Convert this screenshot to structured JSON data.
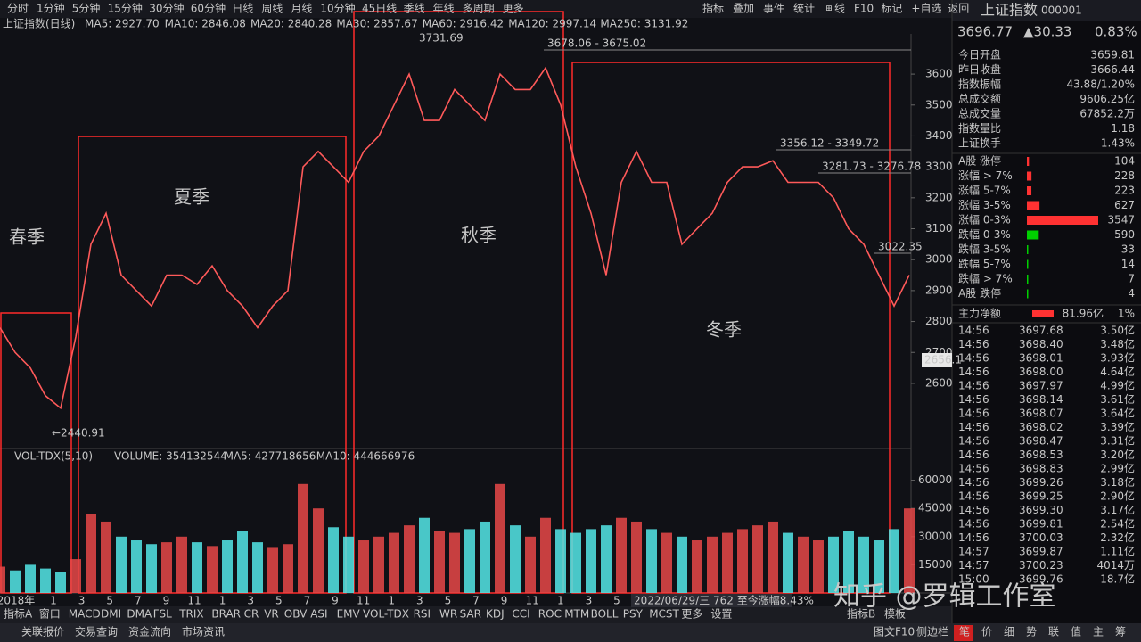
{
  "toolbar": {
    "periods": [
      "分时",
      "1分钟",
      "5分钟",
      "15分钟",
      "30分钟",
      "60分钟",
      "日线",
      "周线",
      "月线",
      "10分钟",
      "45日线",
      "季线",
      "年线",
      "多周期",
      "更多"
    ],
    "tools": [
      "指标",
      "叠加",
      "事件",
      "统计",
      "画线",
      "F10",
      "标记",
      "+自选",
      "返回"
    ]
  },
  "legend": {
    "title": "上证指数(日线)",
    "ma": [
      {
        "label": "MA5: 2927.70",
        "color": "#e8e8e8"
      },
      {
        "label": "MA10: 2846.08",
        "color": "#ffd700"
      },
      {
        "label": "MA20: 2840.28",
        "color": "#ff44ff"
      },
      {
        "label": "MA30: 2857.67",
        "color": "#33ee33"
      },
      {
        "label": "MA60: 2916.42",
        "color": "#e8e8e8"
      },
      {
        "label": "MA120: 2997.14",
        "color": "#3aa0e0"
      },
      {
        "label": "MA250: 3131.92",
        "color": "#e8e8e8"
      }
    ]
  },
  "chart_data": [
    {
      "type": "line",
      "color": "#ff5a5a",
      "values": [
        2780,
        2700,
        2650,
        2560,
        2520,
        2750,
        3050,
        3150,
        2950,
        2900,
        2850,
        2950,
        2950,
        2920,
        2980,
        2900,
        2850,
        2780,
        2850,
        2900,
        3300,
        3350,
        3300,
        3250,
        3350,
        3400,
        3500,
        3600,
        3450,
        3450,
        3550,
        3500,
        3450,
        3600,
        3550,
        3550,
        3620,
        3500,
        3300,
        3150,
        2950,
        3250,
        3350,
        3250,
        3250,
        3050,
        3100,
        3150,
        3250,
        3300,
        3300,
        3320,
        3250,
        3250,
        3250,
        3200,
        3100,
        3050,
        2950,
        2850,
        2950
      ],
      "ylim": [
        2398,
        3730
      ],
      "yticks": [
        2600,
        2700,
        2800,
        2900,
        3000,
        3100,
        3200,
        3300,
        3400,
        3500,
        3600
      ],
      "x_axis_labels": [
        "2018年",
        "1",
        "3",
        "5",
        "7",
        "9",
        "11",
        "1",
        "3",
        "5",
        "7",
        "9",
        "11",
        "1",
        "3",
        "5",
        "7",
        "9",
        "11",
        "1",
        "3",
        "5",
        "7"
      ],
      "annotations": [
        "3731.69",
        "3678.06 - 3675.02",
        "3356.12 - 3349.72",
        "3281.73 - 3276.78",
        "3022.35",
        "←2440.91"
      ],
      "crosshair_label": "2656.1",
      "seasons": [
        "春季",
        "夏季",
        "秋季",
        "冬季"
      ],
      "date_info": "2022/06/29/三 762 至今涨幅8.43%"
    },
    {
      "type": "bar",
      "title": "VOL-TDX(5,10)",
      "indicators": [
        {
          "label": "VOLUME: 354132544",
          "color": "#e8e8e8"
        },
        {
          "label": "MA5: 427718656",
          "color": "#e8e8e8"
        },
        {
          "label": "MA10: 444666976",
          "color": "#ffd700"
        }
      ],
      "values": [
        14000,
        12000,
        15000,
        13000,
        11000,
        18000,
        42000,
        38000,
        30000,
        28000,
        26000,
        27000,
        30000,
        27000,
        25000,
        28000,
        33000,
        27000,
        24000,
        26000,
        58000,
        45000,
        35000,
        30000,
        28000,
        30000,
        32000,
        36000,
        40000,
        33000,
        32000,
        34000,
        38000,
        58000,
        36000,
        30000,
        40000,
        34000,
        32000,
        34000,
        36000,
        40000,
        38000,
        34000,
        32000,
        30000,
        28000,
        30000,
        32000,
        34000,
        36000,
        38000,
        32000,
        30000,
        28000,
        30000,
        33000,
        30000,
        28000,
        34000,
        45000
      ],
      "ylim": [
        0,
        75000
      ],
      "yticks": [
        15000,
        30000,
        45000,
        60000
      ]
    }
  ],
  "tabs": [
    "指标A",
    "窗口",
    "MACD",
    "DMI",
    "DMA",
    "FSL",
    "TRIX",
    "BRAR",
    "CR",
    "VR",
    "OBV",
    "ASI",
    "EMV",
    "VOL-TDX",
    "RSI",
    "WR",
    "SAR",
    "KDJ",
    "CCI",
    "ROC",
    "MTM",
    "BOLL",
    "PSY",
    "MCST",
    "更多",
    "设置"
  ],
  "tabs_right": [
    "指标B",
    "模板"
  ],
  "status_bar": [
    "关联报价",
    "交易查询",
    "资金流向",
    "市场资讯"
  ],
  "status_right": [
    "图文F10",
    "侧边栏"
  ],
  "watermark": "知乎 @罗辑工作室",
  "quote": {
    "name": "上证指数",
    "code": "000001",
    "price": "3696.77",
    "change": "▲30.33",
    "pct": "0.83%"
  },
  "stats": [
    [
      "今日开盘",
      "3659.81"
    ],
    [
      "昨日收盘",
      "3666.44"
    ],
    [
      "指数振幅",
      "43.88/1.20%"
    ],
    [
      "总成交额",
      "9606.25亿"
    ],
    [
      "总成交量",
      "67852.2万"
    ],
    [
      "指数量比",
      "1.18"
    ],
    [
      "上证换手",
      "1.43%"
    ]
  ],
  "breadth": [
    {
      "label": "A股 涨停",
      "value": 104,
      "color": "#ff3232"
    },
    {
      "label": "涨幅 > 7%",
      "value": 228,
      "color": "#ff3232"
    },
    {
      "label": "涨幅 5-7%",
      "value": 223,
      "color": "#ff3232"
    },
    {
      "label": "涨幅 3-5%",
      "value": 627,
      "color": "#ff3232"
    },
    {
      "label": "涨幅 0-3%",
      "value": 3547,
      "color": "#ff3232"
    },
    {
      "label": "跌幅 0-3%",
      "value": 590,
      "color": "#00d000"
    },
    {
      "label": "跌幅 3-5%",
      "value": 33,
      "color": "#00d000"
    },
    {
      "label": "跌幅 5-7%",
      "value": 14,
      "color": "#00d000"
    },
    {
      "label": "跌幅 > 7%",
      "value": 7,
      "color": "#00d000"
    },
    {
      "label": "A股 跌停",
      "value": 4,
      "color": "#00d000"
    }
  ],
  "flow": {
    "label": "主力净额",
    "value": "81.96亿",
    "pct": "1%"
  },
  "trades": [
    [
      "14:56",
      "3697.68",
      "3.50亿"
    ],
    [
      "14:56",
      "3698.40",
      "3.48亿"
    ],
    [
      "14:56",
      "3698.01",
      "3.93亿"
    ],
    [
      "14:56",
      "3698.00",
      "4.64亿"
    ],
    [
      "14:56",
      "3697.97",
      "4.99亿"
    ],
    [
      "14:56",
      "3698.14",
      "3.61亿"
    ],
    [
      "14:56",
      "3698.07",
      "3.64亿"
    ],
    [
      "14:56",
      "3698.02",
      "3.39亿"
    ],
    [
      "14:56",
      "3698.47",
      "3.31亿"
    ],
    [
      "14:56",
      "3698.53",
      "3.20亿"
    ],
    [
      "14:56",
      "3698.83",
      "2.99亿"
    ],
    [
      "14:56",
      "3699.26",
      "3.18亿"
    ],
    [
      "14:56",
      "3699.25",
      "2.90亿"
    ],
    [
      "14:56",
      "3699.30",
      "3.17亿"
    ],
    [
      "14:56",
      "3699.81",
      "2.54亿"
    ],
    [
      "14:56",
      "3700.03",
      "2.32亿"
    ],
    [
      "14:57",
      "3699.87",
      "1.11亿"
    ],
    [
      "14:57",
      "3700.23",
      "4014万"
    ],
    [
      "15:00",
      "3699.76",
      "18.7亿"
    ]
  ],
  "panel_tabs": [
    "笔",
    "价",
    "细",
    "势",
    "联",
    "值",
    "主",
    "筹"
  ]
}
